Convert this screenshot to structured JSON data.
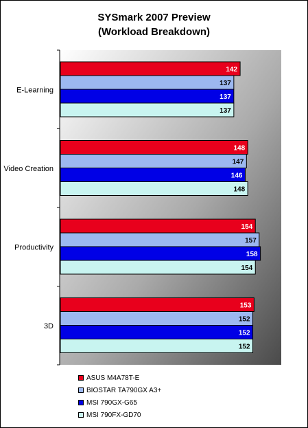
{
  "chart_data": {
    "type": "bar",
    "orientation": "horizontal",
    "title": "SYSmark 2007 Preview",
    "subtitle": "(Workload Breakdown)",
    "categories": [
      "E-Learning",
      "Video Creation",
      "Productivity",
      "3D"
    ],
    "series": [
      {
        "name": "ASUS M4A78T-E",
        "color": "#e8001c",
        "label_color": "#ffffff",
        "values": [
          142,
          148,
          154,
          153
        ]
      },
      {
        "name": "BIOSTAR TA790GX A3+",
        "color": "#9cb8f0",
        "label_color": "#000000",
        "values": [
          137,
          147,
          157,
          152
        ]
      },
      {
        "name": "MSI 790GX-G65",
        "color": "#0000e6",
        "label_color": "#ffffff",
        "values": [
          137,
          146,
          158,
          152
        ]
      },
      {
        "name": "MSI 790FX-GD70",
        "color": "#c8f4f0",
        "label_color": "#000000",
        "values": [
          137,
          148,
          154,
          152
        ]
      }
    ],
    "xlim": [
      0,
      175
    ],
    "grid": false,
    "legend_position": "bottom"
  }
}
